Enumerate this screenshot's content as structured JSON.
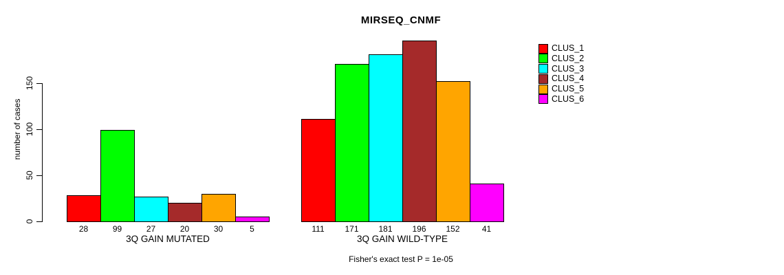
{
  "chart_data": {
    "type": "bar",
    "title": "MIRSEQ_CNMF",
    "ylabel": "number of cases",
    "xlabel": "",
    "ylim": [
      0,
      200
    ],
    "yticks": [
      0,
      50,
      100,
      150
    ],
    "grid": false,
    "legend_position": "right",
    "categories": [
      "3Q GAIN MUTATED",
      "3Q GAIN WILD-TYPE"
    ],
    "series": [
      {
        "name": "CLUS_1",
        "color": "#FF0000",
        "values": [
          28,
          111
        ]
      },
      {
        "name": "CLUS_2",
        "color": "#00FF00",
        "values": [
          99,
          171
        ]
      },
      {
        "name": "CLUS_3",
        "color": "#00FFFF",
        "values": [
          27,
          181
        ]
      },
      {
        "name": "CLUS_4",
        "color": "#A52A2A",
        "values": [
          20,
          196
        ]
      },
      {
        "name": "CLUS_5",
        "color": "#FFA500",
        "values": [
          30,
          152
        ]
      },
      {
        "name": "CLUS_6",
        "color": "#FF00FF",
        "values": [
          5,
          41
        ]
      }
    ],
    "bar_value_labels": [
      [
        28,
        99,
        27,
        20,
        30,
        5
      ],
      [
        111,
        171,
        181,
        196,
        152,
        41
      ]
    ],
    "annotation": "Fisher's exact test P = 1e-05"
  }
}
